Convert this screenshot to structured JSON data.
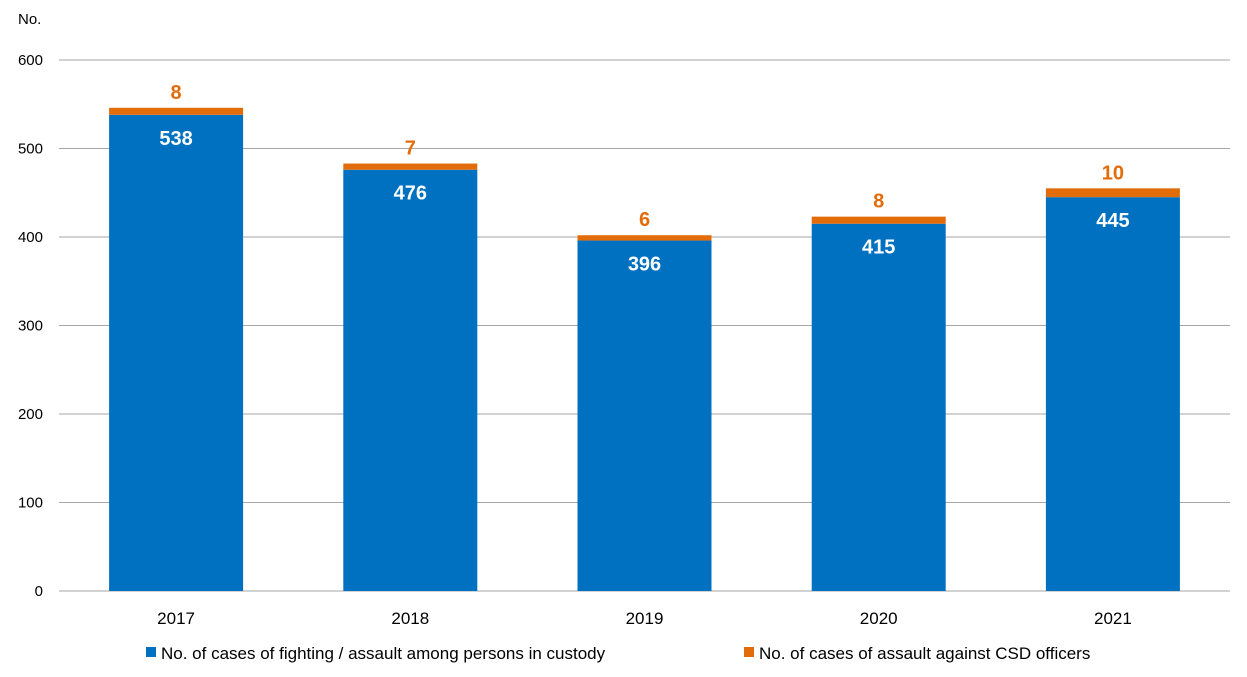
{
  "chart_data": {
    "type": "bar",
    "stacked": true,
    "unit_label": "No.",
    "categories": [
      "2017",
      "2018",
      "2019",
      "2020",
      "2021"
    ],
    "series": [
      {
        "name": "No. of cases of fighting / assault among persons in custody",
        "color": "#0070C0",
        "values": [
          538,
          476,
          396,
          415,
          445
        ]
      },
      {
        "name": "No. of cases of assault against CSD officers",
        "color": "#E36C0A",
        "values": [
          8,
          7,
          6,
          8,
          10
        ]
      }
    ],
    "ylim": [
      0,
      600
    ],
    "yticks": [
      0,
      100,
      200,
      300,
      400,
      500,
      600
    ],
    "grid": true,
    "legend_position": "bottom"
  }
}
